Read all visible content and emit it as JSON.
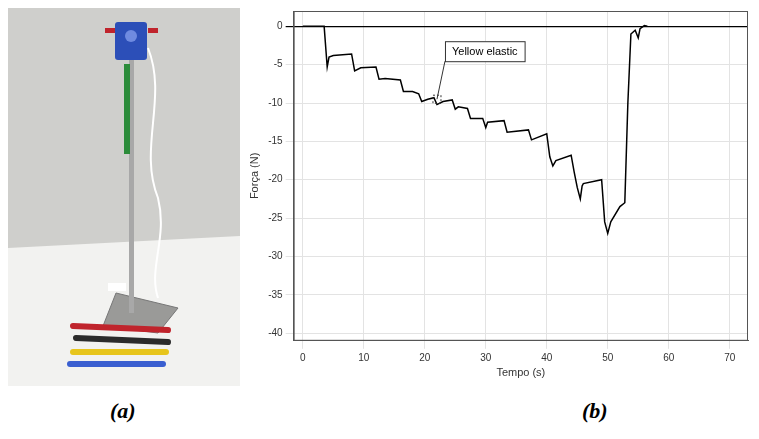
{
  "panel_labels": [
    "(a)",
    "(b)"
  ],
  "chart_data": {
    "type": "line",
    "x_label": "Tempo (s)",
    "y_label": "Força (N)",
    "x": [
      0,
      3.5,
      4,
      4.3,
      5,
      8,
      8.5,
      9.5,
      12,
      12.5,
      13.5,
      16,
      16.5,
      18,
      19,
      19.5,
      20.5,
      21.5,
      22,
      23,
      24.5,
      25,
      25.5,
      27,
      27.5,
      29.5,
      30,
      30.3,
      33,
      33.5,
      37,
      37.5,
      40,
      40.5,
      41,
      41.5,
      44,
      44.5,
      45,
      45.5,
      45.8,
      46,
      49,
      49.5,
      50,
      50.5,
      52,
      52.8,
      53.3,
      53.8,
      54.5,
      55,
      55.3,
      56,
      56.5
    ],
    "values": [
      0,
      0,
      -5.3,
      -4,
      -3.8,
      -3.6,
      -5.8,
      -5.4,
      -5.3,
      -6.9,
      -6.8,
      -7,
      -8.5,
      -8.5,
      -8.8,
      -9.8,
      -9.5,
      -9.3,
      -10.2,
      -9.8,
      -9.6,
      -10.8,
      -10.5,
      -10.7,
      -12,
      -12,
      -13.2,
      -12.5,
      -12.3,
      -13.8,
      -13.5,
      -14.8,
      -14,
      -17,
      -18.2,
      -17.5,
      -16.8,
      -19,
      -21,
      -22.5,
      -20.8,
      -20.5,
      -20,
      -25.5,
      -27,
      -25.5,
      -23.5,
      -23,
      -10,
      -1,
      -0.5,
      -1.5,
      -0.3,
      0.1,
      0
    ],
    "color": "#000000",
    "xlim": [
      -1.5,
      73
    ],
    "xticks": [
      0,
      10,
      20,
      30,
      40,
      50,
      60,
      70
    ],
    "ylim": [
      -41,
      2
    ],
    "yticks": [
      -40,
      -35,
      -30,
      -25,
      -20,
      -15,
      -10,
      -5,
      0
    ],
    "grid": true,
    "annotations": [
      {
        "text": "Yellow elastic",
        "x": 22,
        "y": -9.5
      }
    ]
  }
}
